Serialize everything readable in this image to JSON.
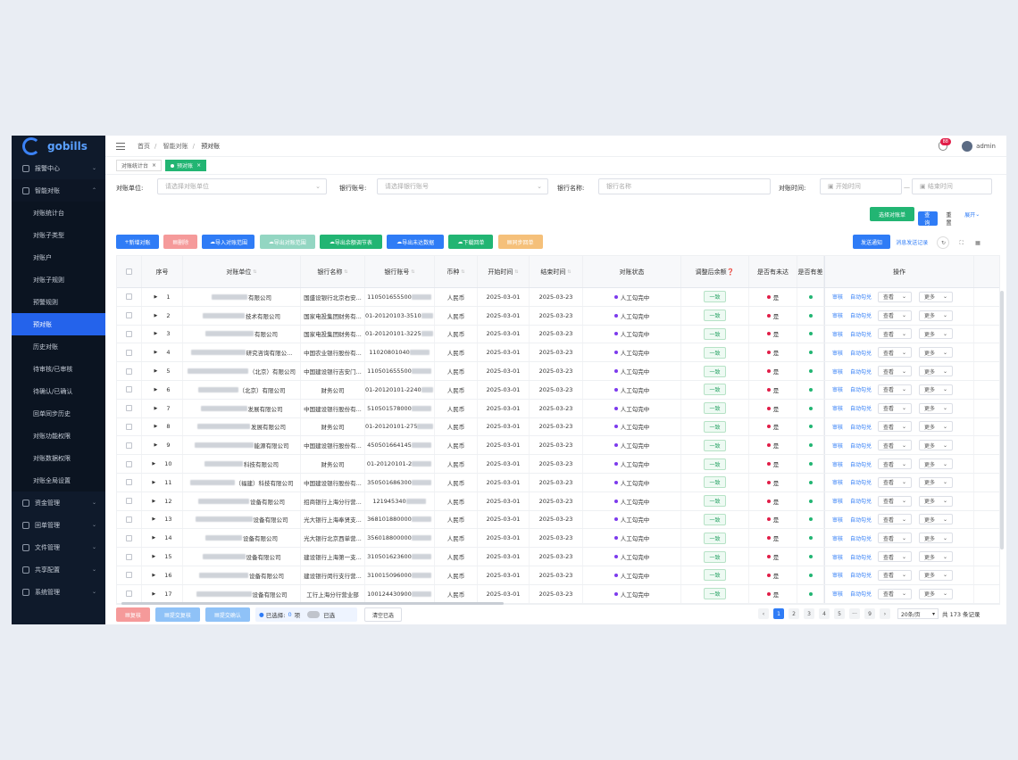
{
  "brand": {
    "name": "gobills"
  },
  "sidebar": {
    "items": [
      {
        "label": "报警中心",
        "type": "parent",
        "icon": "alarm-icon"
      },
      {
        "label": "智能对账",
        "type": "parent-open",
        "icon": "reconcile-icon"
      },
      {
        "label": "对账统计台",
        "type": "sub"
      },
      {
        "label": "对账子类型",
        "type": "sub"
      },
      {
        "label": "对账户",
        "type": "sub"
      },
      {
        "label": "对账子规则",
        "type": "sub"
      },
      {
        "label": "预警规则",
        "type": "sub"
      },
      {
        "label": "预对账",
        "type": "sub",
        "active": true
      },
      {
        "label": "历史对账",
        "type": "sub"
      },
      {
        "label": "待审核/已审核",
        "type": "sub"
      },
      {
        "label": "待确认/已确认",
        "type": "sub"
      },
      {
        "label": "回单同步历史",
        "type": "sub"
      },
      {
        "label": "对账功能权限",
        "type": "sub"
      },
      {
        "label": "对账数据权限",
        "type": "sub"
      },
      {
        "label": "对账全局设置",
        "type": "sub"
      },
      {
        "label": "资金管理",
        "type": "parent",
        "icon": "fund-icon"
      },
      {
        "label": "回单管理",
        "type": "parent",
        "icon": "receipt-icon"
      },
      {
        "label": "文件管理",
        "type": "parent",
        "icon": "file-icon"
      },
      {
        "label": "共享配置",
        "type": "parent",
        "icon": "share-icon"
      },
      {
        "label": "系统管理",
        "type": "parent",
        "icon": "system-icon"
      }
    ]
  },
  "header": {
    "breadcrumb": [
      "首页",
      "智能对账",
      "预对账"
    ],
    "badge": "88",
    "user": "admin"
  },
  "tabs": [
    {
      "label": "对账统计台",
      "active": false
    },
    {
      "label": "预对账",
      "active": true
    }
  ],
  "filters": {
    "unit_label": "对账单位:",
    "unit_placeholder": "请选择对账单位",
    "account_label": "银行账号:",
    "account_placeholder": "请选择银行账号",
    "bank_label": "银行名称:",
    "bank_placeholder": "银行名称",
    "time_label": "对账时间:",
    "start_placeholder": "开始时间",
    "end_placeholder": "结束时间",
    "dash": "—"
  },
  "search_buttons": {
    "select_recon": "选择对账单",
    "query": "查询",
    "reset": "重置",
    "expand": "展开"
  },
  "toolbar": {
    "add": "新增对账",
    "delete": "删除",
    "import_plan": "导入对账范围",
    "export_plan": "导出对账范围",
    "export_balance": "导出余额调节表",
    "export_unmatched": "导出未达数据",
    "download_receipt": "下载回单",
    "sync_receipt": "同步回单",
    "send_notice": "发送通知",
    "notice_record": "消息发送记录"
  },
  "columns": [
    "序号",
    "对账单位",
    "银行名称",
    "银行账号",
    "币种",
    "开始时间",
    "结束时间",
    "对账状态",
    "调整后余额",
    "是否有未达",
    "是否有差",
    "操作"
  ],
  "rows": [
    {
      "no": "1",
      "unit": "有限公司",
      "bank": "国盛设银行北京右安...",
      "acct": "110501655500",
      "cur": "人民币",
      "start": "2025-03-01",
      "end": "2025-03-23",
      "status": "人工勾完中",
      "bal": "一致",
      "unm": "是"
    },
    {
      "no": "2",
      "unit": "技术有限公司",
      "bank": "国家电投集团财务有...",
      "acct": "01-20120103-3510",
      "cur": "人民币",
      "start": "2025-03-01",
      "end": "2025-03-23",
      "status": "人工勾完中",
      "bal": "一致",
      "unm": "是"
    },
    {
      "no": "3",
      "unit": "有限公司",
      "bank": "国家电投集团财务有...",
      "acct": "01-20120101-3225",
      "cur": "人民币",
      "start": "2025-03-01",
      "end": "2025-03-23",
      "status": "人工勾完中",
      "bal": "一致",
      "unm": "是"
    },
    {
      "no": "4",
      "unit": "研究咨询有限公...",
      "bank": "中国农业银行股份有...",
      "acct": "11020801040",
      "cur": "人民币",
      "start": "2025-03-01",
      "end": "2025-03-23",
      "status": "人工勾完中",
      "bal": "一致",
      "unm": "是"
    },
    {
      "no": "5",
      "unit": "（北京）有限公司",
      "bank": "中国建设银行吉安门...",
      "acct": "110501655500",
      "cur": "人民币",
      "start": "2025-03-01",
      "end": "2025-03-23",
      "status": "人工勾完中",
      "bal": "一致",
      "unm": "是"
    },
    {
      "no": "6",
      "unit": "（北京）有限公司",
      "bank": "财务公司",
      "acct": "01-20120101-2240",
      "cur": "人民币",
      "start": "2025-03-01",
      "end": "2025-03-23",
      "status": "人工勾完中",
      "bal": "一致",
      "unm": "是"
    },
    {
      "no": "7",
      "unit": "发展有限公司",
      "bank": "中国建设银行股份有...",
      "acct": "510501578000",
      "cur": "人民币",
      "start": "2025-03-01",
      "end": "2025-03-23",
      "status": "人工勾完中",
      "bal": "一致",
      "unm": "是"
    },
    {
      "no": "8",
      "unit": "发展有限公司",
      "bank": "财务公司",
      "acct": "01-20120101-275",
      "cur": "人民币",
      "start": "2025-03-01",
      "end": "2025-03-23",
      "status": "人工勾完中",
      "bal": "一致",
      "unm": "是"
    },
    {
      "no": "9",
      "unit": "能源有限公司",
      "bank": "中国建设银行股份有...",
      "acct": "450501664145",
      "cur": "人民币",
      "start": "2025-03-01",
      "end": "2025-03-23",
      "status": "人工勾完中",
      "bal": "一致",
      "unm": "是"
    },
    {
      "no": "10",
      "unit": "科技有限公司",
      "bank": "财务公司",
      "acct": "01-20120101-2",
      "cur": "人民币",
      "start": "2025-03-01",
      "end": "2025-03-23",
      "status": "人工勾完中",
      "bal": "一致",
      "unm": "是"
    },
    {
      "no": "11",
      "unit": "（福建）科技有限公司",
      "bank": "中国建设银行股份有...",
      "acct": "350501686300",
      "cur": "人民币",
      "start": "2025-03-01",
      "end": "2025-03-23",
      "status": "人工勾完中",
      "bal": "一致",
      "unm": "是"
    },
    {
      "no": "12",
      "unit": "设备有限公司",
      "bank": "招商银行上海分行营...",
      "acct": "121945340",
      "cur": "人民币",
      "start": "2025-03-01",
      "end": "2025-03-23",
      "status": "人工勾完中",
      "bal": "一致",
      "unm": "是"
    },
    {
      "no": "13",
      "unit": "设备有限公司",
      "bank": "光大银行上海奉贤支...",
      "acct": "368101880000",
      "cur": "人民币",
      "start": "2025-03-01",
      "end": "2025-03-23",
      "status": "人工勾完中",
      "bal": "一致",
      "unm": "是"
    },
    {
      "no": "14",
      "unit": "设备有限公司",
      "bank": "光大银行北京西单营...",
      "acct": "356018800000",
      "cur": "人民币",
      "start": "2025-03-01",
      "end": "2025-03-23",
      "status": "人工勾完中",
      "bal": "一致",
      "unm": "是"
    },
    {
      "no": "15",
      "unit": "设备有限公司",
      "bank": "建设银行上海第一支...",
      "acct": "310501623600",
      "cur": "人民币",
      "start": "2025-03-01",
      "end": "2025-03-23",
      "status": "人工勾完中",
      "bal": "一致",
      "unm": "是"
    },
    {
      "no": "16",
      "unit": "设备有限公司",
      "bank": "建设银行闵行支行营...",
      "acct": "310015096000",
      "cur": "人民币",
      "start": "2025-03-01",
      "end": "2025-03-23",
      "status": "人工勾完中",
      "bal": "一致",
      "unm": "是"
    },
    {
      "no": "17",
      "unit": "设备有限公司",
      "bank": "工行上海分行营业部",
      "acct": "100124430900",
      "cur": "人民币",
      "start": "2025-03-01",
      "end": "2025-03-23",
      "status": "人工勾完中",
      "bal": "一致",
      "unm": "是"
    }
  ],
  "row_actions": {
    "audit": "审核",
    "auto_match": "自动勾兑",
    "view": "查看",
    "more": "更多"
  },
  "footer": {
    "review": "复核",
    "submit_review": "提交复核",
    "submit_confirm": "提交确认",
    "selected_label": "已选择:",
    "selected_count": "0",
    "selected_unit": "项",
    "selected_toggle": "已选",
    "clear": "清空已选",
    "pages": [
      "1",
      "2",
      "3",
      "4",
      "5",
      "···",
      "9"
    ],
    "page_size": "20条/页",
    "total": "共 173 条记录"
  },
  "colors": {
    "sidebar_bg": "#0f1a2b",
    "primary": "#2f7cf6",
    "green": "#22b573",
    "red": "#f59a9a",
    "teal": "#93d6c2",
    "orange": "#f5c07a"
  }
}
